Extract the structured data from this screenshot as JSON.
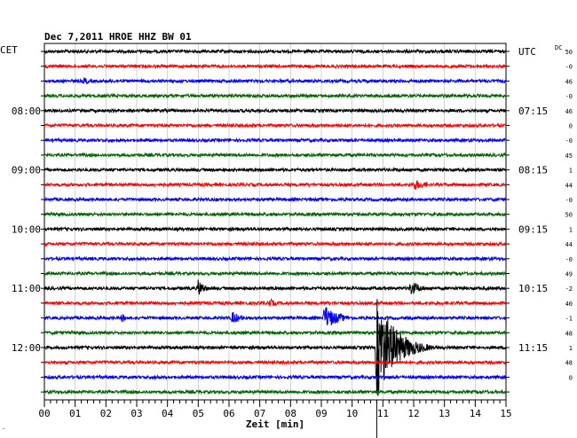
{
  "title": "Dec 7,2011   HROE HHZ BW 01",
  "left_zone": "CET",
  "right_zone": "UTC",
  "dc_label": "DC",
  "xlabel": "Zeit [min]",
  "corner_mark": ".",
  "colors": {
    "black": "#000000",
    "red": "#ff0000",
    "blue": "#0000ff",
    "green": "#006400",
    "grid": "#000000"
  },
  "chart_data": {
    "type": "line",
    "title": "Dec 7,2011   HROE HHZ BW 01",
    "xlabel": "Zeit [min]",
    "ylabel": "",
    "xlim": [
      0,
      15
    ],
    "x_ticks": [
      "00",
      "01",
      "02",
      "03",
      "04",
      "05",
      "06",
      "07",
      "08",
      "09",
      "10",
      "11",
      "12",
      "13",
      "14",
      "15"
    ],
    "trace_count": 24,
    "trace_color_cycle": [
      "black",
      "red",
      "blue",
      "green"
    ],
    "left_time_labels": [
      {
        "trace": 4,
        "label": "08:00"
      },
      {
        "trace": 8,
        "label": "09:00"
      },
      {
        "trace": 12,
        "label": "10:00"
      },
      {
        "trace": 16,
        "label": "11:00"
      },
      {
        "trace": 20,
        "label": "12:00"
      }
    ],
    "right_time_labels": [
      {
        "trace": 0,
        "label": "UTC"
      },
      {
        "trace": 4,
        "label": "07:15"
      },
      {
        "trace": 8,
        "label": "08:15"
      },
      {
        "trace": 12,
        "label": "09:15"
      },
      {
        "trace": 16,
        "label": "10:15"
      },
      {
        "trace": 20,
        "label": "11:15"
      }
    ],
    "dc_offsets": [
      "50",
      "-0",
      "46",
      "-0",
      "46",
      "0",
      "-0",
      "45",
      "1",
      "44",
      "-0",
      "50",
      "1",
      "44",
      "-0",
      "49",
      "-2",
      "40",
      "-1",
      "48",
      "1",
      "48",
      "0"
    ],
    "events": [
      {
        "trace": 2,
        "x_min": 1.3,
        "amp": 5,
        "dur": 0.6
      },
      {
        "trace": 9,
        "x_min": 12.0,
        "amp": 7,
        "dur": 1.2
      },
      {
        "trace": 16,
        "x_min": 5.0,
        "amp": 11,
        "dur": 0.6
      },
      {
        "trace": 16,
        "x_min": 11.9,
        "amp": 9,
        "dur": 1.0
      },
      {
        "trace": 17,
        "x_min": 7.3,
        "amp": 6,
        "dur": 0.7
      },
      {
        "trace": 18,
        "x_min": 2.5,
        "amp": 6,
        "dur": 0.5
      },
      {
        "trace": 18,
        "x_min": 6.1,
        "amp": 8,
        "dur": 0.9
      },
      {
        "trace": 18,
        "x_min": 9.1,
        "amp": 15,
        "dur": 1.3
      },
      {
        "trace": 20,
        "x_min": 10.8,
        "amp": 60,
        "dur": 1.8
      },
      {
        "trace": 22,
        "x_min": 3.6,
        "amp": 4,
        "dur": 0.4
      }
    ],
    "grid": true
  }
}
